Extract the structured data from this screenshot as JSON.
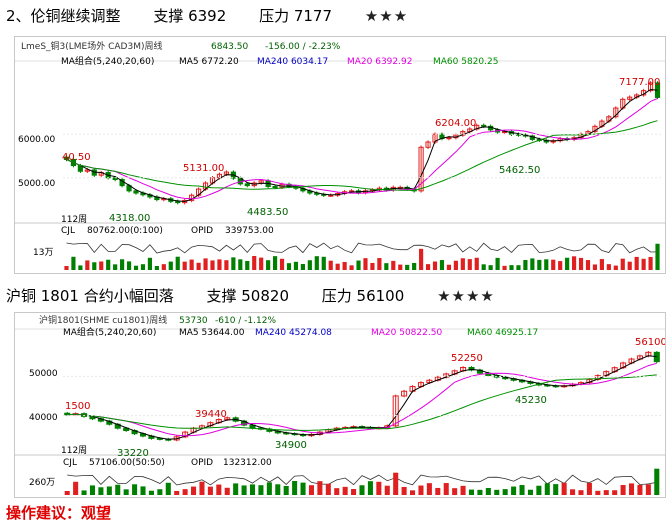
{
  "header1": {
    "title": "2、伦铜继续调整",
    "support": "支撑 6392",
    "pressure": "压力 7177",
    "stars": "★★★"
  },
  "header2": {
    "title": "沪铜 1801 合约小幅回落",
    "support": "支撑 50820",
    "pressure": "压力 56100",
    "stars": "★★★★"
  },
  "advice": "操作建议：观望",
  "chart_data": [
    {
      "type": "candlestick",
      "instrument": "LmeS_铜3(LME场外 CAD3M)周线",
      "quote": {
        "last": "6843.50",
        "change": "-156.00 / -2.23%"
      },
      "ma_legend": {
        "label": "MA组合(5,240,20,60)",
        "ma5": "MA5 6772.20",
        "ma240": "MA240 6034.17",
        "ma20": "MA20 6392.92",
        "ma60": "MA60 5820.25"
      },
      "yticks": [
        "6000.00",
        "5000.00"
      ],
      "y_range": [
        4100,
        7450
      ],
      "period_label": "112周",
      "annotations": [
        "7177.00",
        "6204.00",
        "5131.00",
        "4483.50",
        "4318.00",
        "5462.50",
        "40.50"
      ],
      "volume": {
        "label": "CJL",
        "value": "80762.00(0:100)",
        "opid_label": "OPID",
        "opid": "339753.00",
        "ytick": "13万"
      },
      "colors": {
        "up": "#e02020",
        "down": "#008000",
        "ma5": "#000000",
        "ma240": "#0000c0",
        "ma20": "#e000e0",
        "ma60": "#009000"
      },
      "closes": [
        5420,
        5280,
        5150,
        5180,
        5060,
        5120,
        5000,
        4960,
        4820,
        4700,
        4650,
        4610,
        4560,
        4500,
        4520,
        4460,
        4430,
        4480,
        4600,
        4740,
        4880,
        5000,
        5080,
        5131,
        4990,
        4860,
        4820,
        4880,
        4930,
        4800,
        4780,
        4850,
        4800,
        4760,
        4700,
        4650,
        4620,
        4600,
        4600,
        4640,
        4680,
        4700,
        4660,
        4700,
        4720,
        4760,
        4720,
        4780,
        4780,
        4740,
        4700,
        5700,
        5820,
        6000,
        5900,
        5920,
        5980,
        6060,
        6120,
        6204,
        6180,
        6100,
        6050,
        6060,
        6000,
        5980,
        5960,
        5880,
        5860,
        5820,
        5850,
        5900,
        5880,
        5920,
        6000,
        6060,
        6180,
        6300,
        6400,
        6600,
        6800,
        6850,
        6900,
        7000,
        7177,
        6843
      ]
    },
    {
      "type": "candlestick",
      "instrument": "沪铜1801(SHME cu1801)周线",
      "quote": {
        "last": "53730",
        "change": "-610 / -1.12%"
      },
      "ma_legend": {
        "label": "MA组合(5,240,20,60)",
        "ma5": "MA5 53644.00",
        "ma240": "MA240 45274.08",
        "ma20": "MA20 50822.50",
        "ma60": "MA60 46925.17"
      },
      "yticks": [
        "50000",
        "40000"
      ],
      "y_range": [
        31500,
        59500
      ],
      "period_label": "112周",
      "annotations": [
        "56100",
        "52250",
        "45230",
        "39440",
        "34900",
        "33220",
        "1500"
      ],
      "volume": {
        "label": "CJL",
        "value": "57106.00(50:50)",
        "opid_label": "OPID",
        "opid": "132312.00",
        "ytick": "260万"
      },
      "colors": {
        "up": "#e02020",
        "down": "#008000",
        "ma5": "#000000",
        "ma240": "#0000c0",
        "ma20": "#e000e0",
        "ma60": "#009000"
      },
      "closes": [
        40200,
        40500,
        39800,
        39200,
        38600,
        37800,
        36800,
        36200,
        35400,
        34800,
        34200,
        34000,
        33800,
        34600,
        35800,
        36800,
        37400,
        38200,
        39000,
        39440,
        38600,
        37600,
        36800,
        36600,
        36000,
        35600,
        35400,
        35200,
        34900,
        35200,
        35800,
        36400,
        36800,
        37000,
        37200,
        37000,
        36800,
        36900,
        37400,
        45000,
        46200,
        47400,
        48400,
        49000,
        49800,
        50600,
        51400,
        52250,
        51600,
        50800,
        50200,
        49800,
        49400,
        49000,
        48600,
        48200,
        47800,
        47600,
        47400,
        47600,
        48000,
        48400,
        49200,
        50200,
        51200,
        52200,
        53400,
        54400,
        55200,
        56100,
        53730
      ]
    }
  ]
}
